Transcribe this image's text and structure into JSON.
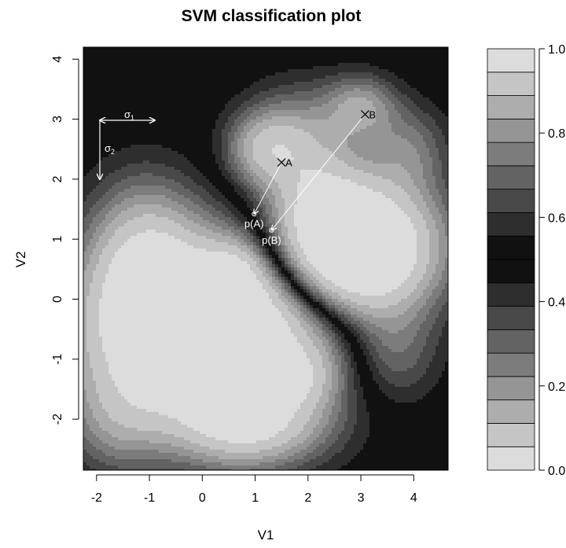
{
  "chart_data": {
    "type": "heatmap",
    "title": "SVM classification plot",
    "xlabel": "V1",
    "ylabel": "V2",
    "xlim": [
      -2.25,
      4.65
    ],
    "ylim": [
      -2.85,
      4.2
    ],
    "xticks": [
      -2,
      -1,
      0,
      1,
      2,
      3,
      4
    ],
    "yticks": [
      -2,
      -1,
      0,
      1,
      2,
      3,
      4
    ],
    "grid": false,
    "colorbar": {
      "ticks": [
        "0.0",
        "0.2",
        "0.4",
        "0.6",
        "0.8",
        "1.0"
      ],
      "levels": 18,
      "range": [
        0,
        1
      ]
    },
    "points": [
      {
        "label": "A",
        "x": 1.5,
        "y": 2.28
      },
      {
        "label": "B",
        "x": 3.08,
        "y": 3.08
      },
      {
        "label": "p(A)",
        "x": 0.98,
        "y": 1.42
      },
      {
        "label": "p(B)",
        "x": 1.31,
        "y": 1.15
      }
    ],
    "annotations": {
      "sigma1": "σ",
      "sigma1_sub": "1",
      "sigma2": "σ",
      "sigma2_sub": "2"
    },
    "colors": {
      "background": "#ffffff",
      "text": "#000000",
      "annotation": "#ffffff"
    }
  }
}
